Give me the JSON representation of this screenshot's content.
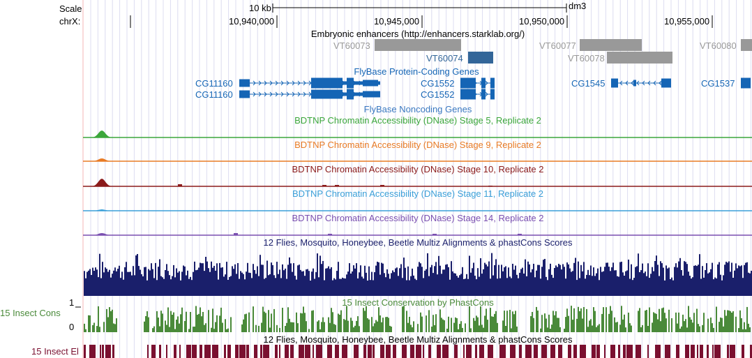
{
  "header": {
    "scale_label": "Scale",
    "chrom_label": "chrX:",
    "scale_bar_text": "10 kb",
    "assembly": "dm3"
  },
  "ruler": {
    "ticks": [
      "10,940,000",
      "10,945,000",
      "10,950,000",
      "10,955,000"
    ]
  },
  "tracks": {
    "enhancers": {
      "title": "Embryonic enhancers (http://enhancers.starklab.org/)",
      "items": [
        {
          "label": "VT60073",
          "color": "#999999"
        },
        {
          "label": "VT60074",
          "color": "#336699"
        },
        {
          "label": "VT60077",
          "color": "#999999"
        },
        {
          "label": "VT60078",
          "color": "#999999"
        },
        {
          "label": "VT60080",
          "color": "#999999"
        }
      ]
    },
    "protein_genes": {
      "title": "FlyBase Protein-Coding Genes",
      "color": "#1565b5",
      "genes": [
        "CG11160",
        "CG11160",
        "CG1552",
        "CG1552",
        "CG1545",
        "CG1537"
      ]
    },
    "noncoding": {
      "title": "FlyBase Noncoding Genes"
    },
    "dnase": [
      {
        "title": "BDTNP Chromatin Accessibility (DNase) Stage 5, Replicate 2",
        "color": "#3ba63b"
      },
      {
        "title": "BDTNP Chromatin Accessibility (DNase) Stage 9, Replicate 2",
        "color": "#e87b25"
      },
      {
        "title": "BDTNP Chromatin Accessibility (DNase) Stage 10, Replicate 2",
        "color": "#8b1a1a"
      },
      {
        "title": "BDTNP Chromatin Accessibility (DNase) Stage 11, Replicate 2",
        "color": "#3a9fd8"
      },
      {
        "title": "BDTNP Chromatin Accessibility (DNase) Stage 14, Replicate 2",
        "color": "#7a4fb0"
      }
    ],
    "multiz": {
      "title": "12 Flies, Mosquito, Honeybee, Beetle Multiz Alignments & phastCons Scores",
      "color": "#1a1f6b"
    },
    "cons": {
      "title": "15 Insect Conservation by PhastCons",
      "left_label": "15 Insect Cons",
      "ymax": "1",
      "ymin": "0",
      "color": "#4a8a3a"
    },
    "elements": {
      "title": "12 Flies, Mosquito, Honeybee, Beetle Multiz Alignments & phastCons Scores",
      "left_label": "15 Insect El",
      "color": "#7a1030"
    }
  }
}
